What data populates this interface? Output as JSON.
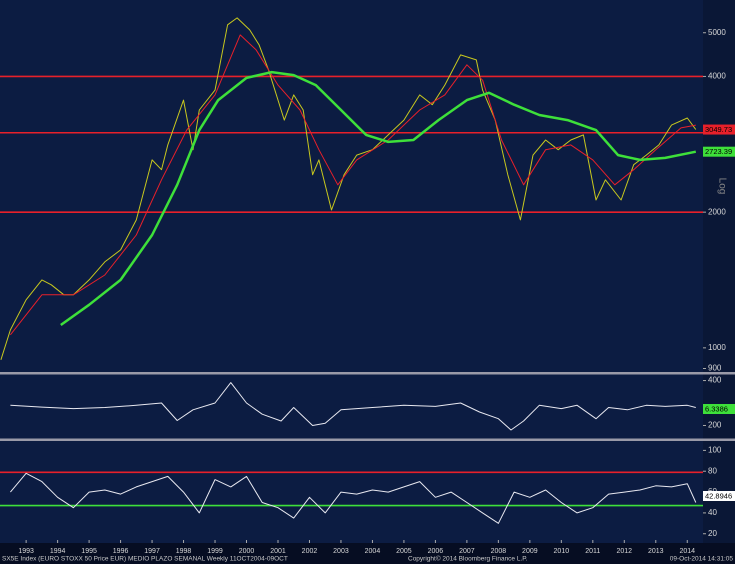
{
  "chart_data": [
    {
      "type": "line",
      "log": true,
      "ylim": [
        884,
        5910
      ],
      "xlim": [
        1992.67,
        2015.0
      ],
      "yticks": [
        900,
        1000,
        2000,
        4000,
        5000
      ],
      "hlines": [
        {
          "value": 2000,
          "color": "#e8202a"
        },
        {
          "value": 3000,
          "color": "#e8202a"
        },
        {
          "value": 4000,
          "color": "#e8202a"
        }
      ],
      "series": [
        {
          "color": "#c8c81e",
          "width": 1,
          "x": [
            1992.7,
            1993.0,
            1993.5,
            1994.0,
            1994.3,
            1994.7,
            1995.0,
            1995.5,
            1996.0,
            1996.5,
            1997.0,
            1997.5,
            1997.8,
            1998.0,
            1998.5,
            1998.8,
            1999.0,
            1999.5,
            1999.9,
            2000.2,
            2000.6,
            2000.9,
            2001.2,
            2001.7,
            2002.0,
            2002.3,
            2002.6,
            2002.8,
            2003.2,
            2003.6,
            2004.0,
            2004.5,
            2005.0,
            2005.5,
            2006.0,
            2006.4,
            2006.8,
            2007.3,
            2007.8,
            2008.0,
            2008.4,
            2008.8,
            2009.2,
            2009.6,
            2010.0,
            2010.4,
            2010.8,
            2011.2,
            2011.6,
            2011.9,
            2012.4,
            2012.8,
            2013.2,
            2013.6,
            2014.0,
            2014.5,
            2014.77
          ],
          "values": [
            941,
            1096,
            1278,
            1415,
            1380,
            1311,
            1311,
            1415,
            1551,
            1649,
            1922,
            2612,
            2484,
            2819,
            3545,
            2751,
            3370,
            3731,
            5206,
            5393,
            5072,
            4699,
            4137,
            3200,
            3640,
            3370,
            2421,
            2612,
            2022,
            2421,
            2677,
            2751,
            2968,
            3200,
            3640,
            3462,
            3826,
            4466,
            4353,
            3731,
            3200,
            2421,
            1922,
            2677,
            2891,
            2751,
            2891,
            2968,
            2128,
            2359,
            2128,
            2549,
            2677,
            2819,
            3119,
            3235,
            3049.73
          ]
        },
        {
          "color": "#e8202a",
          "width": 1,
          "x": [
            1993.0,
            1994.0,
            1995.0,
            1996.0,
            1997.0,
            1997.8,
            1998.6,
            1999.5,
            2000.3,
            2000.8,
            2001.5,
            2002.2,
            2002.8,
            2003.4,
            2004.0,
            2005.0,
            2006.0,
            2006.8,
            2007.5,
            2008.0,
            2008.6,
            2009.3,
            2010.0,
            2010.8,
            2011.5,
            2012.2,
            2012.8,
            2013.5,
            2014.3,
            2014.77
          ],
          "values": [
            1069,
            1311,
            1311,
            1451,
            1780,
            2359,
            3041,
            3640,
            4946,
            4585,
            3826,
            3370,
            2751,
            2300,
            2612,
            2891,
            3370,
            3640,
            4245,
            3924,
            2891,
            2300,
            2751,
            2819,
            2612,
            2300,
            2484,
            2751,
            3075,
            3119
          ]
        },
        {
          "color": "#3ee03a",
          "width": 2.5,
          "x": [
            1994.6,
            1995.5,
            1996.5,
            1997.5,
            1998.3,
            1999.0,
            1999.6,
            2000.5,
            2001.3,
            2002.0,
            2002.7,
            2003.5,
            2004.3,
            2005.0,
            2005.8,
            2006.6,
            2007.5,
            2008.2,
            2009.0,
            2009.8,
            2010.7,
            2011.6,
            2012.3,
            2013.0,
            2013.8,
            2014.77
          ],
          "values": [
            1124,
            1246,
            1415,
            1780,
            2300,
            3041,
            3545,
            3971,
            4089,
            4027,
            3826,
            3370,
            2968,
            2863,
            2891,
            3200,
            3545,
            3680,
            3462,
            3285,
            3200,
            3041,
            2677,
            2612,
            2638,
            2723.39
          ]
        }
      ],
      "value_boxes": [
        {
          "value": 3049.73,
          "label": "3049.73",
          "color": "#e8202a"
        },
        {
          "value": 2723.39,
          "label": "2723.39",
          "color": "#3ee03a"
        }
      ],
      "axis_label": "Log"
    },
    {
      "type": "line",
      "log": false,
      "ylim": [
        142,
        427
      ],
      "xlim": [
        1992.67,
        2015.0
      ],
      "yticks": [
        200,
        400
      ],
      "series": [
        {
          "color": "#e8e8f0",
          "width": 1,
          "x": [
            1993,
            1994,
            1995,
            1996,
            1997,
            1997.8,
            1998.3,
            1998.8,
            1999.5,
            2000.0,
            2000.5,
            2001.0,
            2001.6,
            2002.0,
            2002.6,
            2003.0,
            2003.5,
            2004.5,
            2005.5,
            2006.5,
            2007.3,
            2007.9,
            2008.5,
            2008.9,
            2009.3,
            2009.8,
            2010.5,
            2011.0,
            2011.6,
            2012.0,
            2012.6,
            2013.2,
            2013.8,
            2014.5,
            2014.77
          ],
          "values": [
            290,
            282,
            275,
            280,
            290,
            300,
            222,
            270,
            300,
            391,
            300,
            250,
            220,
            280,
            200,
            210,
            270,
            280,
            290,
            285,
            300,
            260,
            230,
            180,
            220,
            290,
            275,
            290,
            230,
            280,
            270,
            290,
            285,
            290,
            280
          ]
        }
      ],
      "text_box": {
        "label": "6.3386",
        "color": "#3ee03a"
      }
    },
    {
      "type": "line",
      "log": false,
      "ylim": [
        14,
        109
      ],
      "xlim": [
        1992.67,
        2015.0
      ],
      "yticks": [
        20,
        40,
        60,
        80,
        100
      ],
      "hlines": [
        {
          "value": 79,
          "color": "#e8202a"
        },
        {
          "value": 47,
          "color": "#3ee03a"
        }
      ],
      "series": [
        {
          "color": "#e8e8f0",
          "width": 1,
          "x": [
            1993,
            1993.5,
            1994,
            1994.5,
            1995,
            1995.5,
            1996,
            1996.5,
            1997,
            1997.5,
            1998,
            1998.5,
            1999,
            1999.5,
            2000,
            2000.5,
            2001,
            2001.5,
            2002,
            2002.5,
            2003,
            2003.5,
            2004,
            2004.5,
            2005,
            2005.5,
            2006,
            2006.5,
            2007,
            2007.5,
            2008,
            2008.5,
            2009,
            2009.5,
            2010,
            2010.5,
            2011,
            2011.5,
            2012,
            2012.5,
            2013,
            2013.5,
            2014,
            2014.5,
            2014.77
          ],
          "values": [
            60,
            78,
            70,
            55,
            45,
            60,
            62,
            58,
            65,
            70,
            75,
            60,
            40,
            72,
            65,
            75,
            50,
            45,
            35,
            55,
            40,
            60,
            58,
            62,
            60,
            65,
            70,
            55,
            60,
            50,
            40,
            30,
            60,
            55,
            62,
            50,
            40,
            45,
            58,
            60,
            62,
            66,
            65,
            68,
            50
          ]
        }
      ],
      "text_box": {
        "label": "42.8946",
        "color": "#ffffff"
      },
      "xticks": [
        {
          "value": 1993.5,
          "label": "1993"
        },
        {
          "value": 1994.5,
          "label": "1994"
        },
        {
          "value": 1995.5,
          "label": "1995"
        },
        {
          "value": 1996.5,
          "label": "1996"
        },
        {
          "value": 1997.5,
          "label": "1997"
        },
        {
          "value": 1998.5,
          "label": "1998"
        },
        {
          "value": 1999.5,
          "label": "1999"
        },
        {
          "value": 2000.5,
          "label": "2000"
        },
        {
          "value": 2001.5,
          "label": "2001"
        },
        {
          "value": 2002.5,
          "label": "2002"
        },
        {
          "value": 2003.5,
          "label": "2003"
        },
        {
          "value": 2004.5,
          "label": "2004"
        },
        {
          "value": 2005.5,
          "label": "2005"
        },
        {
          "value": 2006.5,
          "label": "2006"
        },
        {
          "value": 2007.5,
          "label": "2007"
        },
        {
          "value": 2008.5,
          "label": "2008"
        },
        {
          "value": 2009.5,
          "label": "2009"
        },
        {
          "value": 2010.5,
          "label": "2010"
        },
        {
          "value": 2011.5,
          "label": "2011"
        },
        {
          "value": 2012.5,
          "label": "2012"
        },
        {
          "value": 2013.5,
          "label": "2013"
        },
        {
          "value": 2014.5,
          "label": "2014"
        }
      ]
    }
  ],
  "footer": {
    "left": "SX5E Index (EURO STOXX 50 Price EUR) MEDIO PLAZO SEMANAL  Weekly 11OCT2004-09OCT",
    "center": "Copyright© 2014 Bloomberg Finance L.P.",
    "right": "09-Oct-2014 14:31:05"
  }
}
